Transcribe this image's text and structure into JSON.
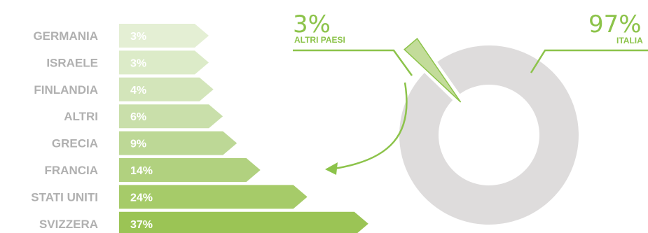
{
  "chart_data": [
    {
      "type": "bar",
      "orientation": "horizontal",
      "categories": [
        "GERMANIA",
        "ISRAELE",
        "FINLANDIA",
        "ALTRI",
        "GRECIA",
        "FRANCIA",
        "STATI UNITI",
        "SVIZZERA"
      ],
      "values": [
        3,
        3,
        4,
        6,
        9,
        14,
        24,
        37
      ],
      "value_labels": [
        "3%",
        "3%",
        "4%",
        "6%",
        "9%",
        "14%",
        "24%",
        "37%"
      ],
      "unit": "%",
      "colors": [
        "#e4efd4",
        "#dcebc8",
        "#d3e5ba",
        "#c9dfaa",
        "#bdd896",
        "#b1d17f",
        "#a6cb69",
        "#9bc455"
      ]
    },
    {
      "type": "pie",
      "style": "donut",
      "slices": [
        {
          "label": "ITALIA",
          "value": 97,
          "display": "97%",
          "color": "#dedcdc"
        },
        {
          "label": "ALTRI PAESI",
          "value": 3,
          "display": "3%",
          "color": "#c3dc9a"
        }
      ]
    }
  ],
  "colors": {
    "accent": "#8cc34a",
    "category_text": "#b0b0b0",
    "donut_gray": "#dedcdc",
    "white": "#ffffff"
  }
}
